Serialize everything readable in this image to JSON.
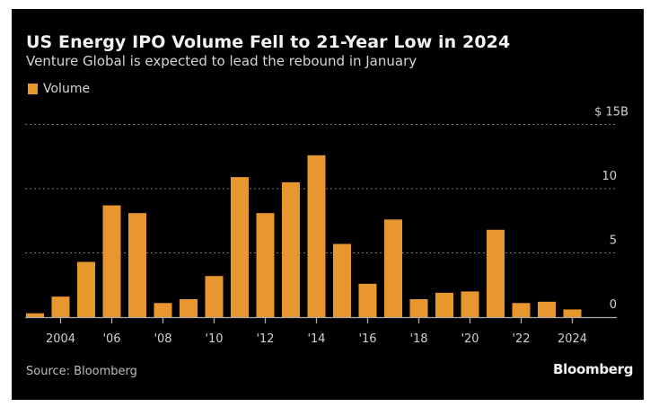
{
  "colors": {
    "background": "#000000",
    "bar": "#E8962E",
    "gridline": "#777777",
    "axis": "#aaaaaa"
  },
  "chart_data": {
    "type": "bar",
    "title": "US Energy IPO Volume Fell to 21-Year Low in 2024",
    "subtitle": "Venture Global is expected to lead the rebound in January",
    "legend": [
      {
        "name": "Volume",
        "color": "#E8962E"
      }
    ],
    "legend_position": "top-left",
    "xlabel": "",
    "ylabel": "",
    "ylim": [
      0,
      15
    ],
    "grid": true,
    "y_ticks": [
      {
        "value": 0,
        "label": "0"
      },
      {
        "value": 5,
        "label": "5"
      },
      {
        "value": 10,
        "label": "10"
      },
      {
        "value": 15,
        "label": "$ 15B"
      }
    ],
    "x_ticks": [
      {
        "year": 2004,
        "label": "2004"
      },
      {
        "year": 2006,
        "label": "'06"
      },
      {
        "year": 2008,
        "label": "'08"
      },
      {
        "year": 2010,
        "label": "'10"
      },
      {
        "year": 2012,
        "label": "'12"
      },
      {
        "year": 2014,
        "label": "'14"
      },
      {
        "year": 2016,
        "label": "'16"
      },
      {
        "year": 2018,
        "label": "'18"
      },
      {
        "year": 2020,
        "label": "'20"
      },
      {
        "year": 2022,
        "label": "'22"
      },
      {
        "year": 2024,
        "label": "2024"
      }
    ],
    "categories": [
      2003,
      2004,
      2005,
      2006,
      2007,
      2008,
      2009,
      2010,
      2011,
      2012,
      2013,
      2014,
      2015,
      2016,
      2017,
      2018,
      2019,
      2020,
      2021,
      2022,
      2023,
      2024
    ],
    "series": [
      {
        "name": "Volume",
        "unit": "$B",
        "values": [
          0.3,
          1.6,
          4.3,
          8.7,
          8.1,
          1.1,
          1.4,
          3.2,
          10.9,
          8.1,
          10.5,
          12.6,
          5.7,
          2.6,
          7.6,
          1.4,
          1.9,
          2.0,
          6.8,
          1.1,
          1.2,
          0.6
        ]
      }
    ],
    "source": "Source: Bloomberg",
    "brand": "Bloomberg"
  }
}
